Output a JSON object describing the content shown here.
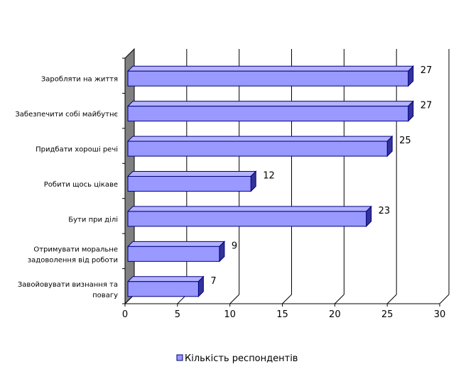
{
  "chart_data": {
    "type": "bar",
    "orientation": "horizontal",
    "style": "3d",
    "categories": [
      "Заробляти на життя",
      "Забезпечити собі майбутнє",
      "Придбати хороші речі",
      "Робити щось цікаве",
      "Бути при ділі",
      "Отримувати моральне задоволення від роботи",
      "Завойовувати визнання та повагу"
    ],
    "category_lines": [
      [
        "Заробляти на життя"
      ],
      [
        "Забезпечити собі майбутнє"
      ],
      [
        "Придбати хороші речі"
      ],
      [
        "Робити щось цікаве"
      ],
      [
        "Бути при ділі"
      ],
      [
        "Отримувати моральне",
        "задоволення від роботи"
      ],
      [
        "Завойовувати визнання та",
        "повагу"
      ]
    ],
    "series": [
      {
        "name": "Кількість респондентів",
        "values": [
          27,
          27,
          25,
          12,
          23,
          9,
          7
        ]
      }
    ],
    "xlim": [
      0,
      30
    ],
    "xticks": [
      0,
      5,
      10,
      15,
      20,
      25,
      30
    ],
    "grid": true,
    "legend_position": "bottom",
    "colors": {
      "bar_front": "#9999ff",
      "bar_top": "#b3b3ff",
      "bar_side": "#333399",
      "bar_edge": "#000080",
      "wall": "#808080",
      "grid": "#000000"
    }
  }
}
